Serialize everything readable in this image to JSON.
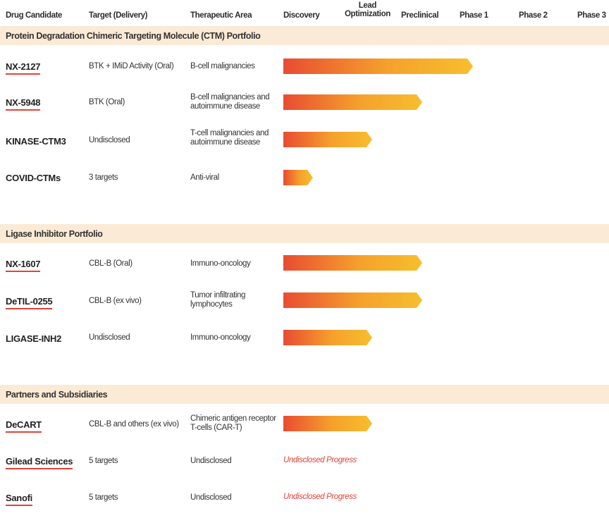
{
  "chart_data": {
    "type": "table",
    "title": "",
    "columns": {
      "candidate": "Drug Candidate",
      "target": "Target (Delivery)",
      "area": "Therapeutic Area",
      "stages": [
        "Discovery",
        "Lead Optimization",
        "Preclinical",
        "Phase 1",
        "Phase 2",
        "Phase 3"
      ]
    },
    "lead_label": {
      "line1": "Lead",
      "line2": "Optimization"
    },
    "sections": [
      {
        "title": "Protein Degradation Chimeric Targeting Molecule (CTM) Portfolio",
        "rows": [
          {
            "name": "NX-2127",
            "linked": true,
            "target": "BTK + IMiD Activity (Oral)",
            "area": "B-cell malignancies",
            "progress_stage": "Phase 1",
            "progress_value": 3.2
          },
          {
            "name": "NX-5948",
            "linked": true,
            "target": "BTK (Oral)",
            "area": "B-cell malignancies and autoimmune disease",
            "progress_stage": "Preclinical",
            "progress_value": 2.35
          },
          {
            "name": "KINASE-CTM3",
            "linked": false,
            "target": "Undisclosed",
            "area": "T-cell malignancies and autoimmune disease",
            "progress_stage": "Lead Optimization",
            "progress_value": 1.5
          },
          {
            "name": "COVID-CTMs",
            "linked": false,
            "target": "3 targets",
            "area": "Anti-viral",
            "progress_stage": "Discovery",
            "progress_value": 0.5
          }
        ]
      },
      {
        "title": "Ligase Inhibitor Portfolio",
        "rows": [
          {
            "name": "NX-1607",
            "linked": true,
            "target": "CBL-B (Oral)",
            "area": "Immuno-oncology",
            "progress_stage": "Preclinical",
            "progress_value": 2.35
          },
          {
            "name": "DeTIL-0255",
            "linked": true,
            "target": "CBL-B (ex vivo)",
            "area": "Tumor infiltrating lymphocytes",
            "progress_stage": "Preclinical",
            "progress_value": 2.35
          },
          {
            "name": "LIGASE-INH2",
            "linked": false,
            "target": "Undisclosed",
            "area": "Immuno-oncology",
            "progress_stage": "Lead Optimization",
            "progress_value": 1.5
          }
        ]
      },
      {
        "title": "Partners and Subsidiaries",
        "rows": [
          {
            "name": "DeCART",
            "linked": true,
            "target": "CBL-B and others (ex vivo)",
            "area": "Chimeric antigen receptor T-cells (CAR-T)",
            "progress_stage": "Lead Optimization",
            "progress_value": 1.5
          },
          {
            "name": "Gilead Sciences",
            "linked": true,
            "target": "5 targets",
            "area": "Undisclosed",
            "progress_text": "Undisclosed Progress"
          },
          {
            "name": "Sanofi",
            "linked": true,
            "target": "5 targets",
            "area": "Undisclosed",
            "progress_text": "Undisclosed Progress"
          }
        ]
      }
    ]
  },
  "colors": {
    "accent_red": "#e0443a",
    "bar_start": "#e94b32",
    "bar_end": "#f7be2e",
    "section_bg": "#fbead5"
  }
}
